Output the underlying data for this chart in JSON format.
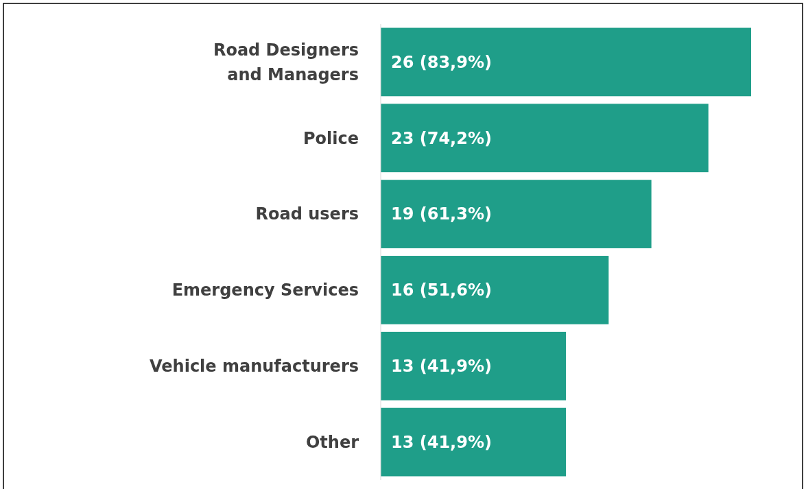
{
  "chart_data": {
    "type": "bar",
    "orientation": "horizontal",
    "categories": [
      "Road Designers and Managers",
      "Police",
      "Road users",
      "Emergency Services",
      "Vehicle manufacturers",
      "Other"
    ],
    "values": [
      26,
      23,
      19,
      16,
      13,
      13
    ],
    "value_labels": [
      "26 (83,9%)",
      "23 (74,2%)",
      "19 (61,3%)",
      "16 (51,6%)",
      "13 (41,9%)",
      "13 (41,9%)"
    ],
    "color": "#1f9e89"
  }
}
